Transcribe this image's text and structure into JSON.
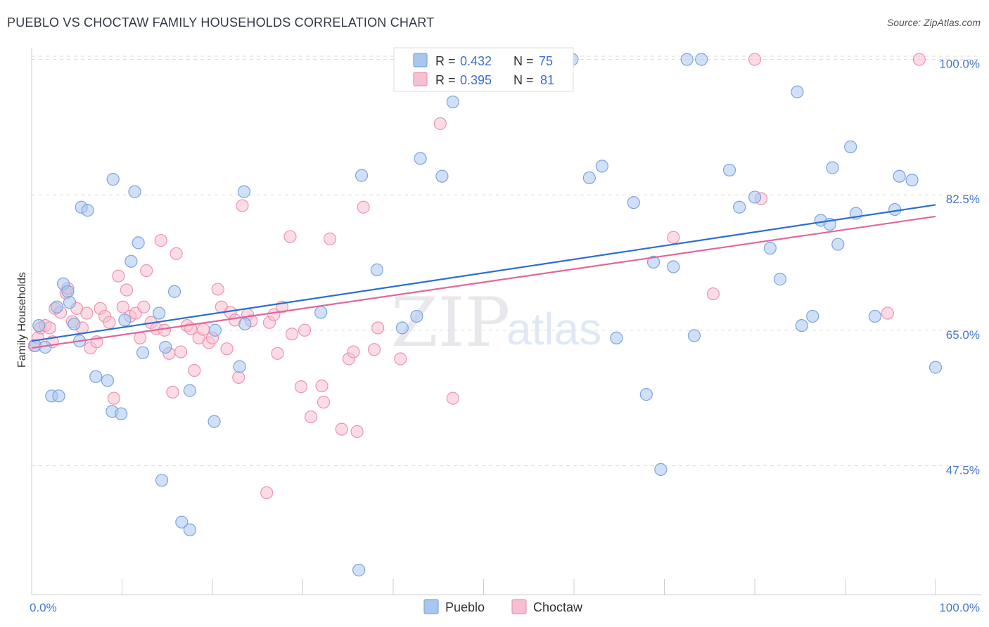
{
  "header": {
    "title": "PUEBLO VS CHOCTAW FAMILY HOUSEHOLDS CORRELATION CHART",
    "source": "Source: ZipAtlas.com"
  },
  "watermark": {
    "zip": "ZIP",
    "atlas": "atlas"
  },
  "legend": {
    "r_label": "R =",
    "n_label": "N =",
    "rows": [
      {
        "series": "Pueblo",
        "r": "0.432",
        "n": "75",
        "color": "#a9c6ef"
      },
      {
        "series": "Choctaw",
        "r": "0.395",
        "n": "81",
        "color": "#f4b6c8"
      }
    ]
  },
  "colors": {
    "pueblo_fill": "#a9c6ef",
    "pueblo_stroke": "#7aa5e0",
    "pueblo_line": "#2a6fd1",
    "choctaw_fill": "#f7c0d0",
    "choctaw_stroke": "#ec94b0",
    "choctaw_line": "#e2669a",
    "tick_text": "#4477cc",
    "grid": "#dddddd"
  },
  "chart_data": {
    "type": "scatter",
    "title": "PUEBLO VS CHOCTAW FAMILY HOUSEHOLDS CORRELATION CHART",
    "xlabel": "",
    "ylabel": "Family Households",
    "xlim": [
      0,
      100
    ],
    "ylim": [
      33,
      101.5
    ],
    "x_tick_labels": [
      "0.0%",
      "100.0%"
    ],
    "y_ticks": [
      47.5,
      65.0,
      82.5,
      100.0
    ],
    "y_tick_labels": [
      "47.5%",
      "65.0%",
      "82.5%",
      "100.0%"
    ],
    "grid": true,
    "legend_position": "top-center",
    "series": [
      {
        "name": "Pueblo",
        "trend": {
          "x": [
            0,
            100
          ],
          "y": [
            63.6,
            81.2
          ]
        },
        "points": [
          [
            0.4,
            63.0
          ],
          [
            0.8,
            65.6
          ],
          [
            1.5,
            62.8
          ],
          [
            2.2,
            56.5
          ],
          [
            2.8,
            68.0
          ],
          [
            3.0,
            56.5
          ],
          [
            3.5,
            71.0
          ],
          [
            4.0,
            70.0
          ],
          [
            4.2,
            68.6
          ],
          [
            4.7,
            65.8
          ],
          [
            5.3,
            63.6
          ],
          [
            5.5,
            80.9
          ],
          [
            6.2,
            80.5
          ],
          [
            7.1,
            59.0
          ],
          [
            8.4,
            58.5
          ],
          [
            8.9,
            54.5
          ],
          [
            9.0,
            84.5
          ],
          [
            9.9,
            54.2
          ],
          [
            10.3,
            66.3
          ],
          [
            11.0,
            73.9
          ],
          [
            11.4,
            82.9
          ],
          [
            11.8,
            76.3
          ],
          [
            12.3,
            62.1
          ],
          [
            14.1,
            67.2
          ],
          [
            14.4,
            45.6
          ],
          [
            14.8,
            62.8
          ],
          [
            15.8,
            70.0
          ],
          [
            16.6,
            40.2
          ],
          [
            17.5,
            39.2
          ],
          [
            17.5,
            57.2
          ],
          [
            20.2,
            53.2
          ],
          [
            20.3,
            65.0
          ],
          [
            23.0,
            60.3
          ],
          [
            23.5,
            82.9
          ],
          [
            23.6,
            65.8
          ],
          [
            32.0,
            67.3
          ],
          [
            36.2,
            34.0
          ],
          [
            36.5,
            85.0
          ],
          [
            38.2,
            72.8
          ],
          [
            41.0,
            65.3
          ],
          [
            42.6,
            66.8
          ],
          [
            43.0,
            87.2
          ],
          [
            45.4,
            84.9
          ],
          [
            46.6,
            94.5
          ],
          [
            59.8,
            100.0
          ],
          [
            61.7,
            84.7
          ],
          [
            63.1,
            86.2
          ],
          [
            64.7,
            64.0
          ],
          [
            66.6,
            81.5
          ],
          [
            68.0,
            56.7
          ],
          [
            68.8,
            73.8
          ],
          [
            69.6,
            47.0
          ],
          [
            71.0,
            73.2
          ],
          [
            72.5,
            100.0
          ],
          [
            73.3,
            64.3
          ],
          [
            74.1,
            100.0
          ],
          [
            77.2,
            85.7
          ],
          [
            78.3,
            80.9
          ],
          [
            80.0,
            82.2
          ],
          [
            81.7,
            75.6
          ],
          [
            82.8,
            71.6
          ],
          [
            84.7,
            95.8
          ],
          [
            85.2,
            65.6
          ],
          [
            86.4,
            66.8
          ],
          [
            87.3,
            79.2
          ],
          [
            88.3,
            78.7
          ],
          [
            88.6,
            86.0
          ],
          [
            89.2,
            76.1
          ],
          [
            90.6,
            88.7
          ],
          [
            91.2,
            80.1
          ],
          [
            93.3,
            66.8
          ],
          [
            95.5,
            80.6
          ],
          [
            96.0,
            84.9
          ],
          [
            97.4,
            84.4
          ],
          [
            100.0,
            60.2
          ]
        ]
      },
      {
        "name": "Choctaw",
        "trend": {
          "x": [
            0,
            100
          ],
          "y": [
            62.7,
            79.7
          ]
        },
        "points": [
          [
            0.3,
            63.0
          ],
          [
            0.7,
            64.0
          ],
          [
            1.0,
            65.3
          ],
          [
            1.5,
            65.6
          ],
          [
            2.0,
            65.3
          ],
          [
            2.3,
            63.5
          ],
          [
            2.6,
            67.8
          ],
          [
            3.2,
            67.3
          ],
          [
            3.8,
            69.8
          ],
          [
            4.0,
            70.4
          ],
          [
            4.5,
            66.1
          ],
          [
            5.0,
            67.8
          ],
          [
            5.6,
            65.3
          ],
          [
            6.1,
            67.2
          ],
          [
            6.5,
            62.7
          ],
          [
            7.2,
            63.5
          ],
          [
            7.6,
            67.8
          ],
          [
            8.1,
            66.8
          ],
          [
            8.6,
            66.0
          ],
          [
            9.1,
            56.2
          ],
          [
            9.6,
            72.0
          ],
          [
            10.1,
            68.0
          ],
          [
            10.5,
            70.2
          ],
          [
            10.9,
            66.8
          ],
          [
            11.5,
            67.2
          ],
          [
            12.0,
            64.0
          ],
          [
            12.4,
            68.0
          ],
          [
            12.7,
            72.7
          ],
          [
            13.2,
            66.0
          ],
          [
            13.8,
            65.2
          ],
          [
            14.3,
            76.6
          ],
          [
            14.7,
            65.0
          ],
          [
            15.2,
            62.0
          ],
          [
            15.6,
            57.0
          ],
          [
            16.0,
            74.9
          ],
          [
            16.5,
            62.2
          ],
          [
            17.2,
            65.6
          ],
          [
            17.6,
            65.2
          ],
          [
            18.0,
            59.8
          ],
          [
            18.5,
            64.0
          ],
          [
            19.0,
            65.1
          ],
          [
            19.6,
            63.4
          ],
          [
            20.0,
            64.0
          ],
          [
            20.6,
            70.3
          ],
          [
            21.0,
            68.0
          ],
          [
            21.6,
            62.6
          ],
          [
            22.0,
            67.3
          ],
          [
            22.5,
            66.3
          ],
          [
            22.9,
            58.9
          ],
          [
            23.3,
            81.1
          ],
          [
            23.9,
            67.0
          ],
          [
            24.3,
            66.2
          ],
          [
            26.0,
            44.0
          ],
          [
            26.3,
            66.0
          ],
          [
            26.8,
            67.0
          ],
          [
            27.2,
            62.0
          ],
          [
            27.7,
            68.0
          ],
          [
            28.6,
            77.1
          ],
          [
            28.8,
            64.5
          ],
          [
            29.8,
            57.7
          ],
          [
            30.2,
            65.0
          ],
          [
            30.9,
            53.8
          ],
          [
            32.1,
            57.8
          ],
          [
            32.3,
            55.7
          ],
          [
            33.0,
            76.8
          ],
          [
            34.3,
            52.2
          ],
          [
            35.1,
            61.3
          ],
          [
            35.6,
            62.2
          ],
          [
            36.0,
            51.9
          ],
          [
            36.7,
            80.9
          ],
          [
            37.9,
            62.5
          ],
          [
            38.3,
            65.3
          ],
          [
            40.8,
            61.3
          ],
          [
            45.2,
            91.7
          ],
          [
            46.6,
            56.2
          ],
          [
            71.0,
            77.0
          ],
          [
            75.4,
            69.7
          ],
          [
            80.0,
            100.0
          ],
          [
            80.7,
            82.0
          ],
          [
            94.7,
            67.2
          ],
          [
            98.2,
            100.0
          ]
        ]
      }
    ]
  }
}
